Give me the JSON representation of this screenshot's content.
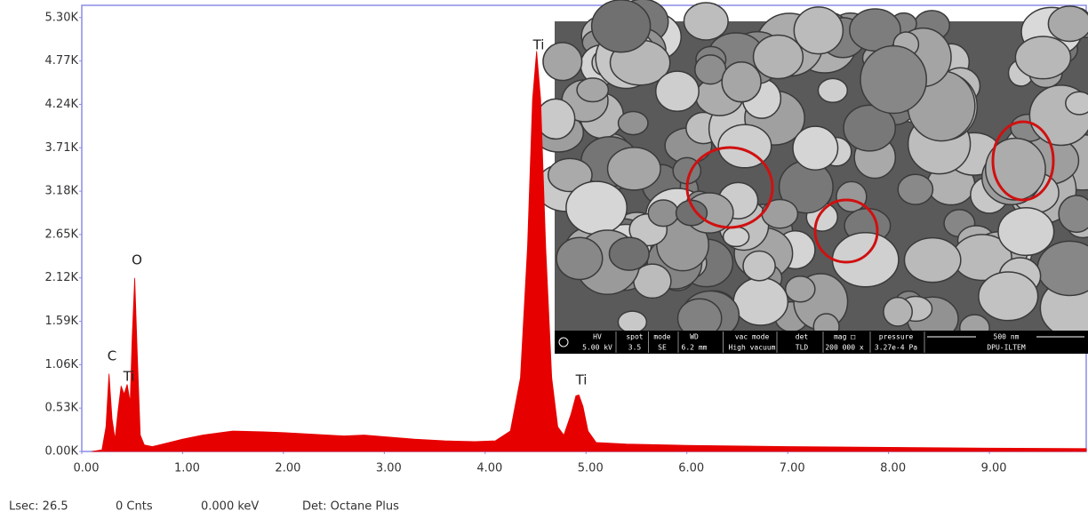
{
  "chart_data": {
    "type": "area",
    "color": "#e60000",
    "x": [
      0.1,
      0.2,
      0.24,
      0.27,
      0.3,
      0.33,
      0.36,
      0.39,
      0.42,
      0.45,
      0.48,
      0.5,
      0.525,
      0.55,
      0.58,
      0.62,
      0.7,
      0.8,
      1.0,
      1.2,
      1.5,
      1.8,
      2.0,
      2.3,
      2.6,
      2.8,
      3.0,
      3.3,
      3.6,
      3.9,
      4.1,
      4.25,
      4.35,
      4.42,
      4.47,
      4.51,
      4.55,
      4.6,
      4.66,
      4.72,
      4.78,
      4.85,
      4.9,
      4.93,
      4.97,
      5.02,
      5.1,
      5.4,
      6.0,
      7.0,
      8.0,
      9.0,
      9.96
    ],
    "values": [
      0,
      20,
      300,
      950,
      400,
      150,
      500,
      800,
      700,
      820,
      600,
      1400,
      2120,
      1200,
      200,
      80,
      60,
      90,
      150,
      200,
      250,
      240,
      230,
      210,
      190,
      200,
      180,
      150,
      130,
      120,
      130,
      250,
      900,
      2500,
      4300,
      4890,
      4300,
      2500,
      900,
      300,
      200,
      450,
      680,
      690,
      550,
      250,
      110,
      90,
      75,
      60,
      50,
      40,
      35
    ],
    "xlim": [
      0,
      9.96
    ],
    "ylim": [
      0,
      5450
    ],
    "xticks": [
      {
        "value": 0,
        "label": "0.00"
      },
      {
        "value": 1,
        "label": "1.00"
      },
      {
        "value": 2,
        "label": "2.00"
      },
      {
        "value": 3,
        "label": "3.00"
      },
      {
        "value": 4,
        "label": "4.00"
      },
      {
        "value": 5,
        "label": "5.00"
      },
      {
        "value": 6,
        "label": "6.00"
      },
      {
        "value": 7,
        "label": "7.00"
      },
      {
        "value": 8,
        "label": "8.00"
      },
      {
        "value": 9,
        "label": "9.00"
      }
    ],
    "yticks": [
      {
        "value": 0,
        "label": "0.00K"
      },
      {
        "value": 530,
        "label": "0.53K"
      },
      {
        "value": 1060,
        "label": "1.06K"
      },
      {
        "value": 1590,
        "label": "1.59K"
      },
      {
        "value": 2120,
        "label": "2.12K"
      },
      {
        "value": 2650,
        "label": "2.65K"
      },
      {
        "value": 3180,
        "label": "3.18K"
      },
      {
        "value": 3710,
        "label": "3.71K"
      },
      {
        "value": 4240,
        "label": "4.24K"
      },
      {
        "value": 4770,
        "label": "4.77K"
      },
      {
        "value": 5300,
        "label": "5.30K"
      }
    ],
    "annotations": [
      "C",
      "Ti",
      "O",
      "Ti",
      "Ti"
    ]
  },
  "status": [
    "Lsec: 26.5",
    "0 Cnts",
    "0.000 keV",
    "Det: Octane Plus"
  ],
  "inset": {
    "databar": [
      [
        "HV",
        "5.00 kV"
      ],
      [
        "spot",
        "3.5"
      ],
      [
        "mode",
        "SE"
      ],
      [
        "WD",
        "6.2 mm"
      ],
      [
        "vac mode",
        "High vacuum"
      ],
      [
        "det",
        "TLD"
      ],
      [
        "mag □",
        "200 000 x"
      ],
      [
        "pressure",
        "3.27e-4 Pa"
      ],
      [
        "500 nm",
        "DPU-ILTEM"
      ]
    ]
  }
}
